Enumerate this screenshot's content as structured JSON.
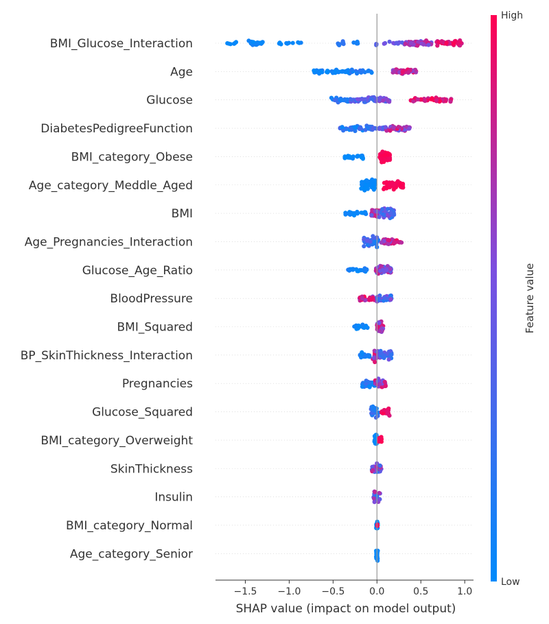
{
  "chart_data": {
    "type": "scatter",
    "subtype": "shap-beeswarm",
    "title": "",
    "xlabel": "SHAP value (impact on model output)",
    "ylabel": "",
    "xlim": [
      -1.84,
      1.1
    ],
    "xticks": [
      -1.5,
      -1.0,
      -0.5,
      0.0,
      0.5,
      1.0
    ],
    "xtick_labels": [
      "−1.5",
      "−1.0",
      "−0.5",
      "0.0",
      "0.5",
      "1.0"
    ],
    "grid": false,
    "colorbar": {
      "title": "Feature value",
      "high_label": "High",
      "low_label": "Low",
      "low_color": "#008bfb",
      "high_color": "#ff0052"
    },
    "features": [
      {
        "name": "BMI_Glucose_Interaction",
        "clusters": [
          {
            "lo": -1.72,
            "hi": -1.58,
            "n": 7,
            "v0": 0.0,
            "v1": 0.05
          },
          {
            "lo": -1.48,
            "hi": -1.28,
            "n": 26,
            "v0": 0.0,
            "v1": 0.1
          },
          {
            "lo": -1.2,
            "hi": -0.86,
            "n": 10,
            "v0": 0.0,
            "v1": 0.08
          },
          {
            "lo": -0.45,
            "hi": -0.38,
            "n": 8,
            "v0": 0.05,
            "v1": 0.25
          },
          {
            "lo": -0.3,
            "hi": -0.2,
            "n": 6,
            "v0": 0.05,
            "v1": 0.2
          },
          {
            "lo": -0.01,
            "hi": 0.01,
            "n": 3,
            "v0": 0.3,
            "v1": 0.5
          },
          {
            "lo": 0.08,
            "hi": 0.32,
            "n": 14,
            "v0": 0.35,
            "v1": 0.65
          },
          {
            "lo": 0.32,
            "hi": 0.62,
            "n": 50,
            "v0": 0.45,
            "v1": 0.85
          },
          {
            "lo": 0.68,
            "hi": 0.97,
            "n": 44,
            "v0": 0.8,
            "v1": 1.0
          }
        ]
      },
      {
        "name": "Age",
        "clusters": [
          {
            "lo": -0.72,
            "hi": -0.3,
            "n": 45,
            "v0": 0.0,
            "v1": 0.15
          },
          {
            "lo": -0.3,
            "hi": -0.05,
            "n": 18,
            "v0": 0.05,
            "v1": 0.25
          },
          {
            "lo": 0.18,
            "hi": 0.45,
            "n": 45,
            "v0": 0.55,
            "v1": 1.0
          }
        ]
      },
      {
        "name": "Glucose",
        "clusters": [
          {
            "lo": -0.52,
            "hi": -0.3,
            "n": 25,
            "v0": 0.0,
            "v1": 0.3
          },
          {
            "lo": -0.3,
            "hi": -0.02,
            "n": 40,
            "v0": 0.15,
            "v1": 0.55
          },
          {
            "lo": -0.02,
            "hi": 0.15,
            "n": 25,
            "v0": 0.3,
            "v1": 0.7
          },
          {
            "lo": 0.38,
            "hi": 0.85,
            "n": 50,
            "v0": 0.78,
            "v1": 1.0
          }
        ]
      },
      {
        "name": "DiabetesPedigreeFunction",
        "clusters": [
          {
            "lo": -0.42,
            "hi": -0.05,
            "n": 45,
            "v0": 0.0,
            "v1": 0.35
          },
          {
            "lo": -0.05,
            "hi": 0.1,
            "n": 20,
            "v0": 0.25,
            "v1": 0.55
          },
          {
            "lo": 0.08,
            "hi": 0.38,
            "n": 40,
            "v0": 0.45,
            "v1": 0.95
          }
        ]
      },
      {
        "name": "BMI_category_Obese",
        "clusters": [
          {
            "lo": -0.37,
            "hi": -0.15,
            "n": 24,
            "v0": 0.0,
            "v1": 0.05
          },
          {
            "lo": 0.03,
            "hi": 0.15,
            "n": 60,
            "v0": 0.95,
            "v1": 1.0
          }
        ]
      },
      {
        "name": "Age_category_Meddle_Aged",
        "clusters": [
          {
            "lo": -0.18,
            "hi": -0.02,
            "n": 70,
            "v0": 0.0,
            "v1": 0.05
          },
          {
            "lo": 0.07,
            "hi": 0.3,
            "n": 55,
            "v0": 0.95,
            "v1": 1.0
          }
        ]
      },
      {
        "name": "BMI",
        "clusters": [
          {
            "lo": -0.37,
            "hi": -0.12,
            "n": 22,
            "v0": 0.0,
            "v1": 0.1
          },
          {
            "lo": -0.07,
            "hi": 0.08,
            "n": 35,
            "v0": 0.4,
            "v1": 0.95
          },
          {
            "lo": 0.05,
            "hi": 0.2,
            "n": 45,
            "v0": 0.15,
            "v1": 0.6
          }
        ]
      },
      {
        "name": "Age_Pregnancies_Interaction",
        "clusters": [
          {
            "lo": -0.15,
            "hi": 0.02,
            "n": 55,
            "v0": 0.1,
            "v1": 0.45
          },
          {
            "lo": 0.05,
            "hi": 0.2,
            "n": 30,
            "v0": 0.55,
            "v1": 0.95
          },
          {
            "lo": 0.2,
            "hi": 0.3,
            "n": 8,
            "v0": 0.75,
            "v1": 1.0
          }
        ]
      },
      {
        "name": "Glucose_Age_Ratio",
        "clusters": [
          {
            "lo": -0.35,
            "hi": -0.1,
            "n": 22,
            "v0": 0.0,
            "v1": 0.15
          },
          {
            "lo": -0.02,
            "hi": 0.16,
            "n": 55,
            "v0": 0.35,
            "v1": 0.95
          }
        ]
      },
      {
        "name": "BloodPressure",
        "clusters": [
          {
            "lo": -0.2,
            "hi": 0.0,
            "n": 30,
            "v0": 0.6,
            "v1": 1.0
          },
          {
            "lo": 0.0,
            "hi": 0.17,
            "n": 45,
            "v0": 0.1,
            "v1": 0.6
          }
        ]
      },
      {
        "name": "BMI_Squared",
        "clusters": [
          {
            "lo": -0.28,
            "hi": -0.1,
            "n": 20,
            "v0": 0.0,
            "v1": 0.1
          },
          {
            "lo": 0.0,
            "hi": 0.07,
            "n": 40,
            "v0": 0.5,
            "v1": 0.95
          }
        ]
      },
      {
        "name": "BP_SkinThickness_Interaction",
        "clusters": [
          {
            "lo": -0.2,
            "hi": -0.08,
            "n": 18,
            "v0": 0.0,
            "v1": 0.15
          },
          {
            "lo": -0.05,
            "hi": 0.04,
            "n": 35,
            "v0": 0.45,
            "v1": 1.0
          },
          {
            "lo": 0.04,
            "hi": 0.17,
            "n": 35,
            "v0": 0.1,
            "v1": 0.55
          }
        ]
      },
      {
        "name": "Pregnancies",
        "clusters": [
          {
            "lo": -0.17,
            "hi": -0.02,
            "n": 30,
            "v0": 0.0,
            "v1": 0.3
          },
          {
            "lo": -0.02,
            "hi": 0.1,
            "n": 40,
            "v0": 0.45,
            "v1": 0.95
          }
        ]
      },
      {
        "name": "Glucose_Squared",
        "clusters": [
          {
            "lo": -0.07,
            "hi": 0.02,
            "n": 35,
            "v0": 0.05,
            "v1": 0.4
          },
          {
            "lo": 0.05,
            "hi": 0.15,
            "n": 20,
            "v0": 0.85,
            "v1": 1.0
          }
        ]
      },
      {
        "name": "BMI_category_Overweight",
        "clusters": [
          {
            "lo": -0.03,
            "hi": 0.0,
            "n": 25,
            "v0": 0.0,
            "v1": 0.05
          },
          {
            "lo": 0.01,
            "hi": 0.06,
            "n": 10,
            "v0": 0.95,
            "v1": 1.0
          }
        ]
      },
      {
        "name": "SkinThickness",
        "clusters": [
          {
            "lo": -0.06,
            "hi": 0.05,
            "n": 35,
            "v0": 0.1,
            "v1": 0.9
          }
        ]
      },
      {
        "name": "Insulin",
        "clusters": [
          {
            "lo": -0.04,
            "hi": 0.04,
            "n": 30,
            "v0": 0.1,
            "v1": 0.9
          }
        ]
      },
      {
        "name": "BMI_category_Normal",
        "clusters": [
          {
            "lo": -0.01,
            "hi": 0.01,
            "n": 25,
            "v0": 0.0,
            "v1": 0.05
          },
          {
            "lo": 0.0,
            "hi": 0.01,
            "n": 2,
            "v0": 0.95,
            "v1": 1.0
          }
        ]
      },
      {
        "name": "Age_category_Senior",
        "clusters": [
          {
            "lo": -0.01,
            "hi": 0.01,
            "n": 25,
            "v0": 0.0,
            "v1": 0.05
          }
        ]
      }
    ]
  }
}
